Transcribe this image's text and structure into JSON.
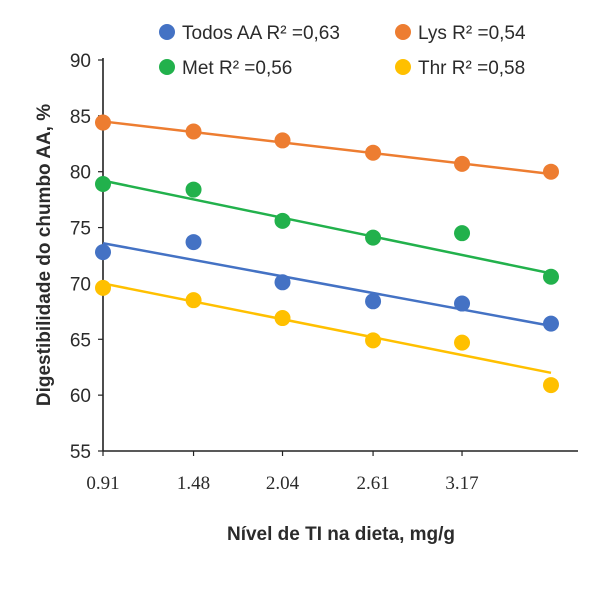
{
  "chart_data": {
    "type": "scatter",
    "xlabel": "Nível de TI na dieta, mg/g",
    "ylabel": "Digestibilidade do chumbo AA, %",
    "x_ticks": [
      "0.91",
      "1.48",
      "2.04",
      "2.61",
      "3.17"
    ],
    "x": [
      0.91,
      1.48,
      2.04,
      2.61,
      3.17,
      3.73
    ],
    "xlim": [
      0.91,
      3.9
    ],
    "ylim": [
      55,
      90
    ],
    "y_ticks": [
      55,
      60,
      65,
      70,
      75,
      80,
      85,
      90
    ],
    "grid": false,
    "legend_position": "top",
    "series": [
      {
        "name": "Todos AA",
        "r2_label": "R² =0,63",
        "color": "#4472c4",
        "values": [
          72.8,
          73.7,
          70.1,
          68.4,
          68.2,
          66.4
        ],
        "trend": [
          73.6,
          66.2
        ]
      },
      {
        "name": "Lys",
        "r2_label": "R² =0,54",
        "color": "#ed7d31",
        "values": [
          84.4,
          83.6,
          82.8,
          81.7,
          80.7,
          80.0
        ],
        "trend": [
          84.5,
          79.8
        ]
      },
      {
        "name": "Met",
        "r2_label": "R² =0,56",
        "color": "#22b14c",
        "values": [
          78.9,
          78.4,
          75.6,
          74.1,
          74.5,
          70.6
        ],
        "trend": [
          79.2,
          70.9
        ]
      },
      {
        "name": "Thr",
        "r2_label": "R² =0,58",
        "color": "#ffc000",
        "values": [
          69.6,
          68.5,
          66.9,
          64.9,
          64.7,
          60.9
        ],
        "trend": [
          70.0,
          62.0
        ]
      }
    ]
  }
}
